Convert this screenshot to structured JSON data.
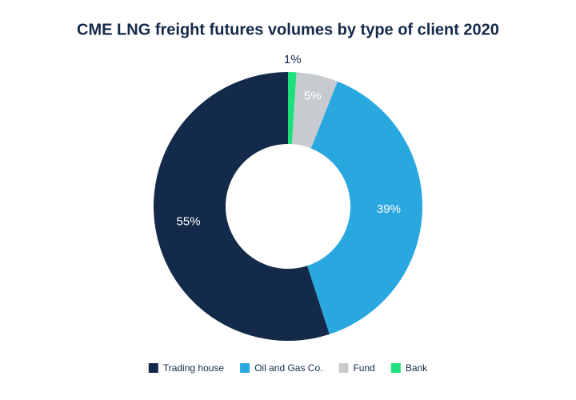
{
  "chart_data": {
    "type": "donut",
    "title": "CME LNG freight futures volumes by type of client 2020",
    "categories": [
      "Trading house",
      "Oil and Gas Co.",
      "Fund",
      "Bank"
    ],
    "values": [
      55,
      39,
      5,
      1
    ],
    "value_labels": [
      "55%",
      "39%",
      "5%",
      "1%"
    ],
    "colors": [
      "#142a4a",
      "#29a8e0",
      "#c7cbd0",
      "#1ee07a"
    ]
  }
}
